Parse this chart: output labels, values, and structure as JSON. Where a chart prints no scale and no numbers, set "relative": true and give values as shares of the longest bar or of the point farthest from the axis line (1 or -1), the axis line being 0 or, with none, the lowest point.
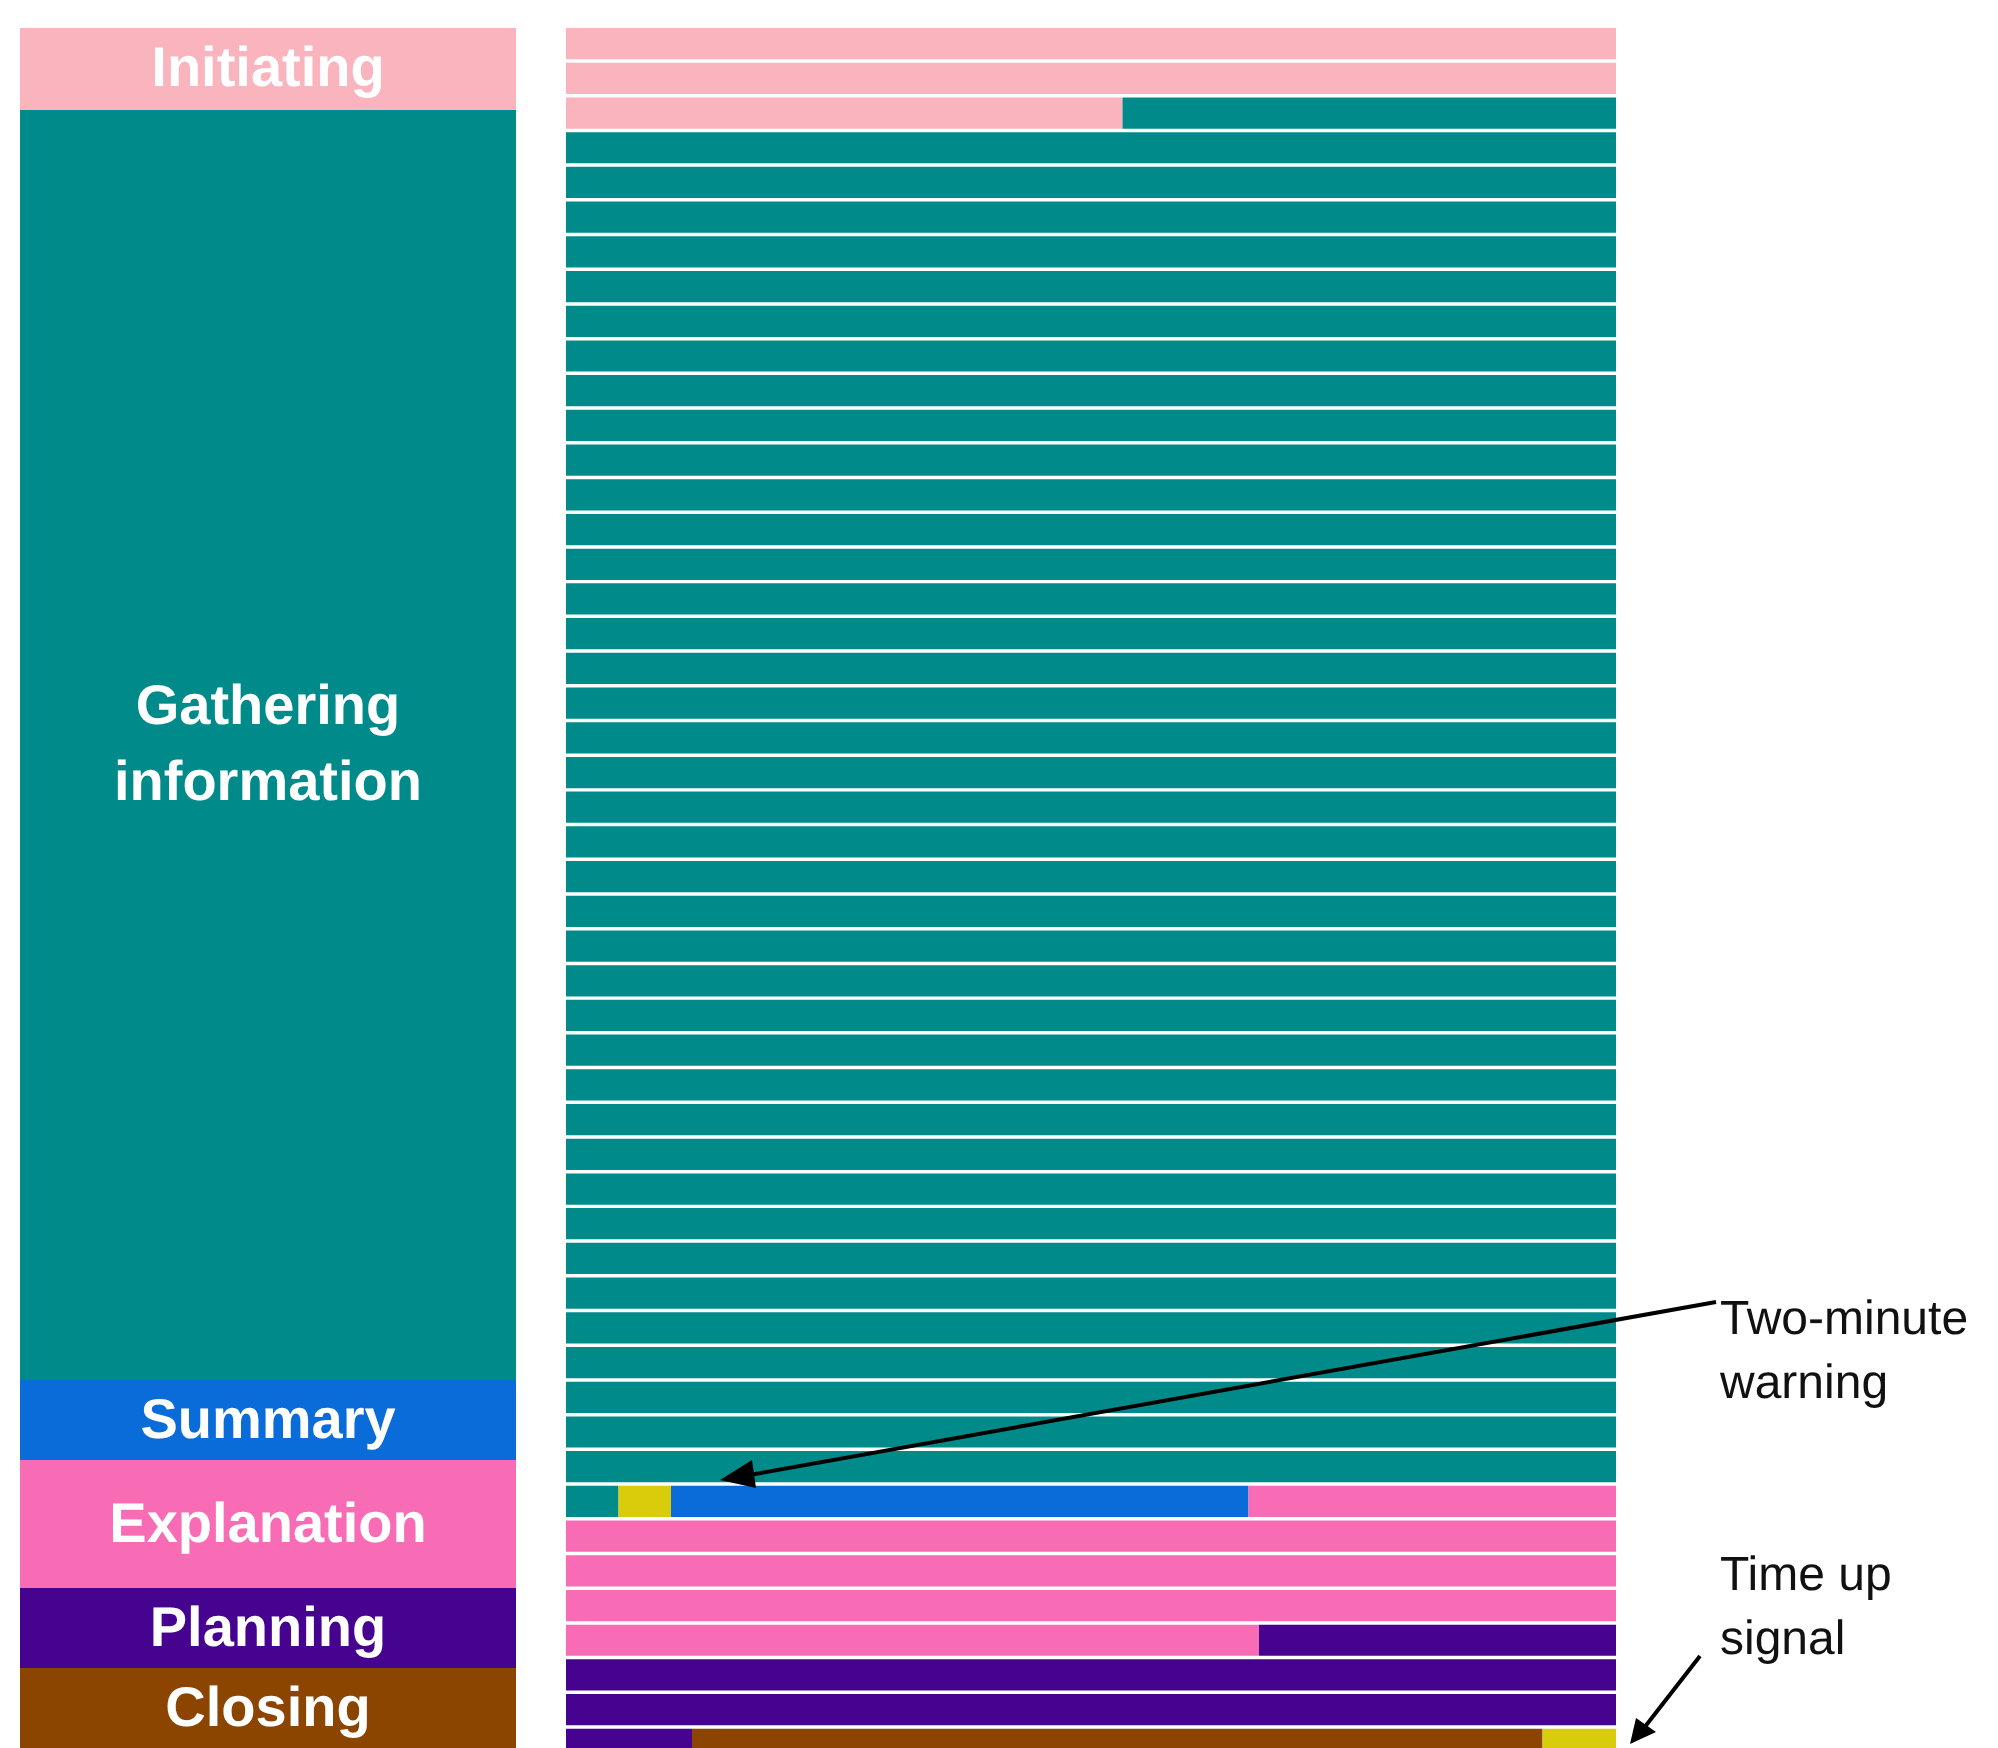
{
  "chart_data": {
    "type": "bar",
    "orientation": "horizontal",
    "stacked": true,
    "relative": true,
    "legend": "left",
    "annotations": [
      "Two-minute warning",
      "Time up signal"
    ],
    "categories": [
      null,
      null,
      null,
      null,
      null,
      null,
      null,
      null,
      null,
      null,
      null,
      null,
      null,
      null,
      null,
      null,
      null,
      null,
      null,
      null,
      null,
      null,
      null,
      null,
      null,
      null,
      null,
      null,
      null,
      null,
      null,
      null,
      null,
      null,
      null,
      null,
      null,
      null,
      null,
      null,
      null,
      null,
      null,
      null,
      null,
      null,
      null,
      null,
      null,
      null
    ],
    "series": [
      {
        "name": "Initiating",
        "color": "#f9b4bd",
        "values": [
          1,
          1,
          0.53,
          null,
          null,
          null,
          null,
          null,
          null,
          null,
          null,
          null,
          null,
          null,
          null,
          null,
          null,
          null,
          null,
          null,
          null,
          null,
          null,
          null,
          null,
          null,
          null,
          null,
          null,
          null,
          null,
          null,
          null,
          null,
          null,
          null,
          null,
          null,
          null,
          null,
          null,
          null,
          null,
          null,
          null,
          null,
          null,
          null,
          null,
          null
        ]
      },
      {
        "name": "Gathering information",
        "color": "#008b8a",
        "values": [
          null,
          null,
          0.47,
          1,
          1,
          1,
          1,
          1,
          1,
          1,
          1,
          1,
          1,
          1,
          1,
          1,
          1,
          1,
          1,
          1,
          1,
          1,
          1,
          1,
          1,
          1,
          1,
          1,
          1,
          1,
          1,
          1,
          1,
          1,
          1,
          1,
          1,
          1,
          1,
          1,
          1,
          1,
          0.05,
          null,
          null,
          null,
          null,
          null,
          null,
          null
        ]
      },
      {
        "color": "#d9cc0a",
        "values": [
          null,
          null,
          null,
          null,
          null,
          null,
          null,
          null,
          null,
          null,
          null,
          null,
          null,
          null,
          null,
          null,
          null,
          null,
          null,
          null,
          null,
          null,
          null,
          null,
          null,
          null,
          null,
          null,
          null,
          null,
          null,
          null,
          null,
          null,
          null,
          null,
          null,
          null,
          null,
          null,
          null,
          null,
          0.05,
          null,
          null,
          null,
          null,
          null,
          null,
          null
        ]
      },
      {
        "name": "Summary",
        "color": "#0a6cd9",
        "values": [
          null,
          null,
          null,
          null,
          null,
          null,
          null,
          null,
          null,
          null,
          null,
          null,
          null,
          null,
          null,
          null,
          null,
          null,
          null,
          null,
          null,
          null,
          null,
          null,
          null,
          null,
          null,
          null,
          null,
          null,
          null,
          null,
          null,
          null,
          null,
          null,
          null,
          null,
          null,
          null,
          null,
          null,
          0.55,
          null,
          null,
          null,
          null,
          null,
          null,
          null
        ]
      },
      {
        "name": "Explanation",
        "color": "#f76cb4",
        "values": [
          null,
          null,
          null,
          null,
          null,
          null,
          null,
          null,
          null,
          null,
          null,
          null,
          null,
          null,
          null,
          null,
          null,
          null,
          null,
          null,
          null,
          null,
          null,
          null,
          null,
          null,
          null,
          null,
          null,
          null,
          null,
          null,
          null,
          null,
          null,
          null,
          null,
          null,
          null,
          null,
          null,
          null,
          0.35,
          1,
          1,
          1,
          0.66,
          null,
          null,
          null
        ]
      },
      {
        "name": "Planning",
        "color": "#46038f",
        "values": [
          null,
          null,
          null,
          null,
          null,
          null,
          null,
          null,
          null,
          null,
          null,
          null,
          null,
          null,
          null,
          null,
          null,
          null,
          null,
          null,
          null,
          null,
          null,
          null,
          null,
          null,
          null,
          null,
          null,
          null,
          null,
          null,
          null,
          null,
          null,
          null,
          null,
          null,
          null,
          null,
          null,
          null,
          null,
          null,
          null,
          null,
          0.34,
          1,
          1,
          0.12
        ]
      },
      {
        "name": "Closing",
        "color": "#8b4500",
        "values": [
          null,
          null,
          null,
          null,
          null,
          null,
          null,
          null,
          null,
          null,
          null,
          null,
          null,
          null,
          null,
          null,
          null,
          null,
          null,
          null,
          null,
          null,
          null,
          null,
          null,
          null,
          null,
          null,
          null,
          null,
          null,
          null,
          null,
          null,
          null,
          null,
          null,
          null,
          null,
          null,
          null,
          null,
          null,
          null,
          null,
          null,
          null,
          null,
          null,
          0.81
        ]
      },
      {
        "color": "#d9cc0a",
        "values": [
          null,
          null,
          null,
          null,
          null,
          null,
          null,
          null,
          null,
          null,
          null,
          null,
          null,
          null,
          null,
          null,
          null,
          null,
          null,
          null,
          null,
          null,
          null,
          null,
          null,
          null,
          null,
          null,
          null,
          null,
          null,
          null,
          null,
          null,
          null,
          null,
          null,
          null,
          null,
          null,
          null,
          null,
          null,
          null,
          null,
          null,
          null,
          null,
          null,
          0.07
        ]
      }
    ]
  }
}
